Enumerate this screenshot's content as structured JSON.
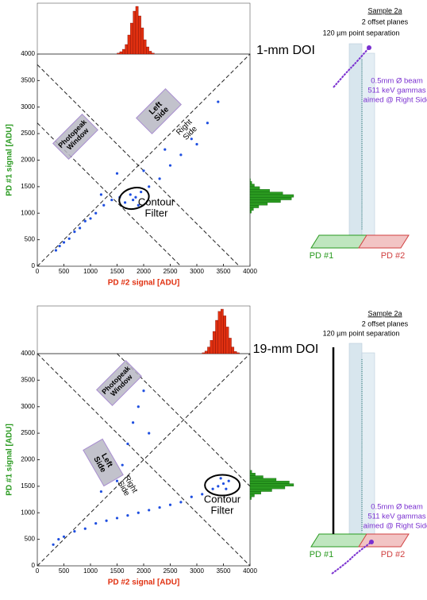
{
  "chart_data": [
    {
      "type": "scatter",
      "x_label": "PD #2 signal [ADU]",
      "y_label": "PD #1 signal [ADU]",
      "xlim": [
        0,
        4000
      ],
      "ylim": [
        0,
        4000
      ],
      "xticks": [
        0,
        500,
        1000,
        1500,
        2000,
        2500,
        3000,
        3500,
        4000
      ],
      "yticks": [
        0,
        500,
        1000,
        1500,
        2000,
        2500,
        3000,
        3500,
        4000
      ],
      "color": "#1f4fe0",
      "x": [
        350,
        420,
        500,
        600,
        700,
        800,
        900,
        1000,
        1100,
        1250,
        1400,
        1550,
        1650,
        1750,
        1800,
        1850,
        1900,
        1950,
        2100,
        2300,
        2500,
        2700,
        2900,
        3200,
        3400,
        1200,
        1500,
        2000,
        2400,
        3000
      ],
      "y": [
        300,
        380,
        450,
        520,
        650,
        720,
        850,
        900,
        1000,
        1150,
        1250,
        1300,
        1200,
        1350,
        1250,
        1300,
        1150,
        1400,
        1500,
        1650,
        1900,
        2100,
        2400,
        2700,
        3100,
        1350,
        1750,
        1800,
        2200,
        2300
      ],
      "top_histogram": {
        "color": "#e03010",
        "bins": [
          1500,
          1550,
          1600,
          1650,
          1700,
          1750,
          1800,
          1850,
          1900,
          1950,
          2000,
          2050,
          2100,
          2150,
          2200
        ],
        "counts": [
          2,
          5,
          10,
          20,
          40,
          65,
          90,
          100,
          80,
          55,
          30,
          15,
          6,
          2
        ]
      },
      "right_histogram": {
        "color": "#2a9a20",
        "bins": [
          1000,
          1050,
          1100,
          1150,
          1200,
          1250,
          1300,
          1350,
          1400,
          1450,
          1500,
          1550,
          1600,
          1650
        ],
        "counts": [
          3,
          8,
          20,
          40,
          70,
          95,
          100,
          75,
          45,
          22,
          10,
          4,
          1
        ]
      },
      "annotations": {
        "photopeak": [
          "Photopeak",
          "Window"
        ],
        "left": [
          "Left",
          "Side"
        ],
        "right": [
          "Right",
          "Side"
        ],
        "contour": [
          "Contour",
          "Filter"
        ]
      },
      "diagram": {
        "sample": "Sample 2a",
        "planes": "2 offset planes",
        "separation": "120 µm point separation",
        "doi": "1-mm DOI",
        "beam": [
          "0.5mm Ø beam",
          "511 keV gammas",
          "aimed @ Right Side"
        ],
        "pd1": "PD #1",
        "pd2": "PD #2"
      }
    },
    {
      "type": "scatter",
      "x_label": "PD #2 signal [ADU]",
      "y_label": "PD #1 signal [ADU]",
      "xlim": [
        0,
        4000
      ],
      "ylim": [
        0,
        4000
      ],
      "xticks": [
        0,
        500,
        1000,
        1500,
        2000,
        2500,
        3000,
        3500,
        4000
      ],
      "yticks": [
        0,
        500,
        1000,
        1500,
        2000,
        2500,
        3000,
        3500,
        4000
      ],
      "color": "#1f4fe0",
      "x": [
        300,
        400,
        500,
        700,
        900,
        1100,
        1300,
        1500,
        1700,
        1900,
        2100,
        2300,
        2500,
        2700,
        2900,
        3100,
        3300,
        3400,
        3500,
        3600,
        3550,
        3450,
        1600,
        1700,
        1800,
        1900,
        2000,
        2100,
        1500,
        1200
      ],
      "y": [
        400,
        500,
        550,
        650,
        700,
        800,
        850,
        900,
        950,
        1000,
        1050,
        1100,
        1150,
        1200,
        1300,
        1350,
        1450,
        1500,
        1550,
        1600,
        1450,
        1650,
        1900,
        2300,
        2700,
        3000,
        3300,
        2500,
        1600,
        1400
      ],
      "top_histogram": {
        "color": "#e03010",
        "bins": [
          3100,
          3150,
          3200,
          3250,
          3300,
          3350,
          3400,
          3450,
          3500,
          3550,
          3600,
          3650,
          3700,
          3750,
          3800
        ],
        "counts": [
          2,
          6,
          15,
          30,
          50,
          75,
          95,
          100,
          85,
          60,
          35,
          15,
          5,
          2
        ]
      },
      "right_histogram": {
        "color": "#2a9a20",
        "bins": [
          1250,
          1300,
          1350,
          1400,
          1450,
          1500,
          1550,
          1600,
          1650,
          1700,
          1750,
          1800
        ],
        "counts": [
          3,
          10,
          25,
          50,
          80,
          100,
          90,
          60,
          30,
          12,
          4
        ]
      },
      "annotations": {
        "photopeak": [
          "Photopeak",
          "Window"
        ],
        "left": [
          "Left",
          "Side"
        ],
        "right": [
          "Right",
          "Side"
        ],
        "contour": [
          "Contour",
          "Filter"
        ]
      },
      "diagram": {
        "sample": "Sample 2a",
        "planes": "2 offset planes",
        "separation": "120 µm point separation",
        "doi": "19-mm DOI",
        "beam": [
          "0.5mm Ø beam",
          "511 keV gammas",
          "aimed @ Right Side"
        ],
        "pd1": "PD #1",
        "pd2": "PD #2"
      }
    }
  ]
}
